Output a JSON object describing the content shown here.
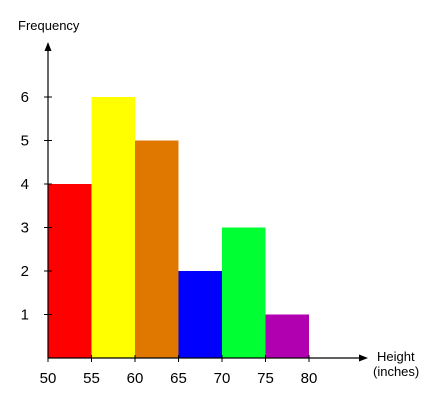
{
  "chart_data": {
    "type": "bar",
    "title": "",
    "ylabel": "Frequency",
    "xlabel_lines": [
      "Height",
      "(inches)"
    ],
    "bins": [
      {
        "from": 50,
        "to": 55,
        "value": 4,
        "color": "#ff0000"
      },
      {
        "from": 55,
        "to": 60,
        "value": 6,
        "color": "#ffff00"
      },
      {
        "from": 60,
        "to": 65,
        "value": 5,
        "color": "#e07800"
      },
      {
        "from": 65,
        "to": 70,
        "value": 2,
        "color": "#0000ff"
      },
      {
        "from": 70,
        "to": 75,
        "value": 3,
        "color": "#00ff33"
      },
      {
        "from": 75,
        "to": 80,
        "value": 1,
        "color": "#b000b0"
      }
    ],
    "x_ticks": [
      50,
      55,
      60,
      65,
      70,
      75,
      80
    ],
    "y_ticks": [
      1,
      2,
      3,
      4,
      5,
      6
    ],
    "xlim": [
      50,
      85
    ],
    "ylim": [
      0,
      7.2
    ],
    "grid": false,
    "legend": "none"
  }
}
